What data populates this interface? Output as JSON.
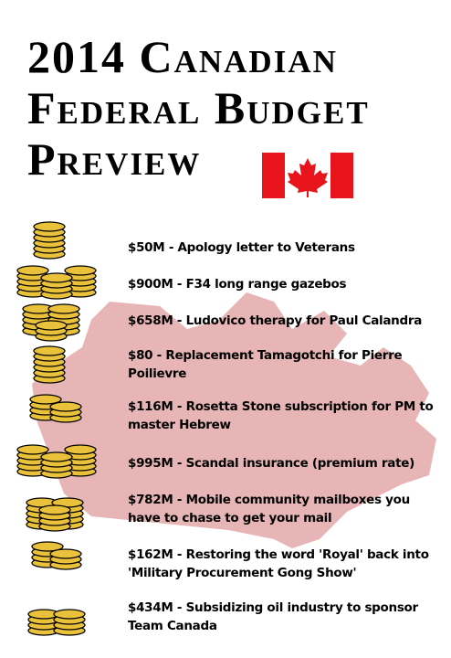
{
  "header": {
    "title_lines": [
      "2014 Canadian",
      "Federal Budget",
      "Preview"
    ]
  },
  "items": [
    "$50M - Apology letter to Veterans",
    "$900M - F34 long range gazebos",
    "$658M - Ludovico therapy for Paul Calandra",
    "$80 - Replacement Tamagotchi for Pierre Poilievre",
    "$116M - Rosetta Stone subscription for PM to master Hebrew",
    "$995M - Scandal insurance (premium rate)",
    "$782M - Mobile community mailboxes you have to chase to get your mail",
    "$162M - Restoring the word 'Royal' back into 'Military Procurement Gong Show'",
    "$434M - Subsidizing oil industry to sponsor Team Canada"
  ]
}
